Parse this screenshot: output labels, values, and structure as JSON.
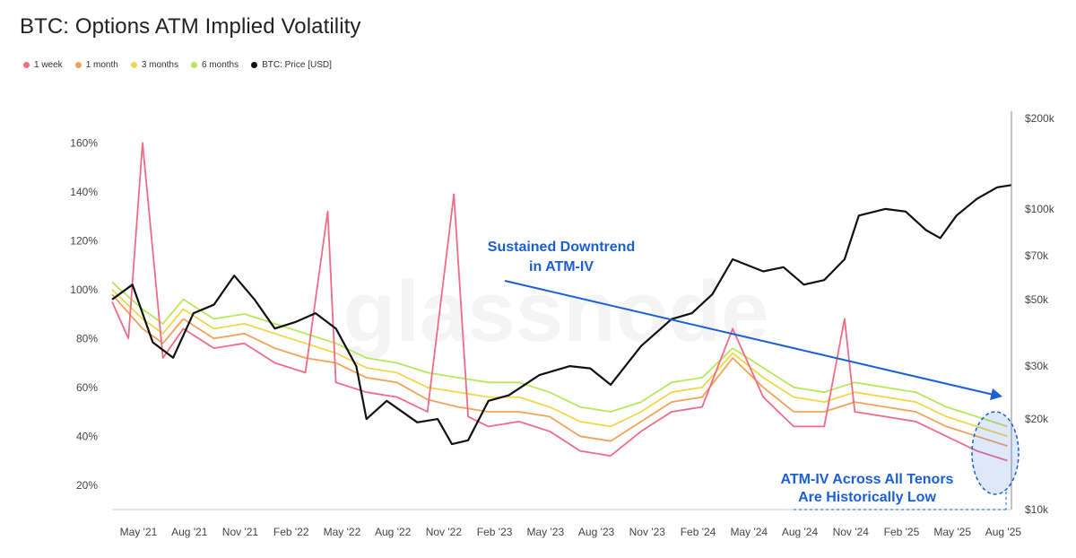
{
  "title": "BTC: Options ATM Implied Volatility",
  "watermark": "glassnode",
  "chart_data": {
    "type": "line",
    "title": "BTC: Options ATM Implied Volatility",
    "x_ticks": [
      "May '21",
      "Aug '21",
      "Nov '21",
      "Feb '22",
      "May '22",
      "Aug '22",
      "Nov '22",
      "Feb '23",
      "May '23",
      "Aug '23",
      "Nov '23",
      "Feb '24",
      "May '24",
      "Aug '24",
      "Nov '24",
      "Feb '25",
      "May '25",
      "Aug '25"
    ],
    "x_range": [
      2021.2,
      2025.62
    ],
    "y_left": {
      "ticks": [
        "160%",
        "140%",
        "120%",
        "100%",
        "80%",
        "60%",
        "40%",
        "20%"
      ],
      "tick_values": [
        160,
        140,
        120,
        100,
        80,
        60,
        40,
        20
      ],
      "range": [
        10,
        170
      ]
    },
    "y_right": {
      "ticks": [
        "$200k",
        "$100k",
        "$70k",
        "$50k",
        "$30k",
        "$20k",
        "$10k"
      ],
      "tick_values": [
        200000,
        100000,
        70000,
        50000,
        30000,
        20000,
        10000
      ],
      "log": true
    },
    "legend": [
      {
        "name": "1 week",
        "color": "#ef6b86"
      },
      {
        "name": "1 month",
        "color": "#f4a259"
      },
      {
        "name": "3 months",
        "color": "#f2d64b"
      },
      {
        "name": "6 months",
        "color": "#b9e75c"
      },
      {
        "name": "BTC: Price [USD]",
        "color": "#111111"
      }
    ],
    "series": [
      {
        "name": "6 months",
        "color": "#b9e75c",
        "axis": "left",
        "x": [
          2021.2,
          2021.35,
          2021.45,
          2021.55,
          2021.7,
          2021.85,
          2022.0,
          2022.15,
          2022.3,
          2022.45,
          2022.6,
          2022.75,
          2022.9,
          2023.05,
          2023.2,
          2023.35,
          2023.5,
          2023.65,
          2023.8,
          2023.95,
          2024.1,
          2024.25,
          2024.4,
          2024.55,
          2024.7,
          2024.85,
          2025.0,
          2025.15,
          2025.3,
          2025.45,
          2025.6
        ],
        "values": [
          103,
          92,
          86,
          96,
          88,
          90,
          86,
          82,
          78,
          72,
          70,
          66,
          64,
          62,
          62,
          58,
          52,
          50,
          54,
          62,
          64,
          76,
          68,
          60,
          58,
          62,
          60,
          58,
          52,
          48,
          44
        ]
      },
      {
        "name": "3 months",
        "color": "#f2d64b",
        "axis": "left",
        "x": [
          2021.2,
          2021.35,
          2021.45,
          2021.55,
          2021.7,
          2021.85,
          2022.0,
          2022.15,
          2022.3,
          2022.45,
          2022.6,
          2022.75,
          2022.9,
          2023.05,
          2023.2,
          2023.35,
          2023.5,
          2023.65,
          2023.8,
          2023.95,
          2024.1,
          2024.25,
          2024.4,
          2024.55,
          2024.7,
          2024.85,
          2025.0,
          2025.15,
          2025.3,
          2025.45,
          2025.6
        ],
        "values": [
          100,
          88,
          82,
          92,
          84,
          86,
          82,
          78,
          74,
          68,
          66,
          60,
          58,
          56,
          56,
          52,
          46,
          44,
          50,
          58,
          60,
          74,
          64,
          56,
          54,
          58,
          56,
          54,
          48,
          44,
          40
        ]
      },
      {
        "name": "1 month",
        "color": "#f4a259",
        "axis": "left",
        "x": [
          2021.2,
          2021.35,
          2021.45,
          2021.55,
          2021.7,
          2021.85,
          2022.0,
          2022.15,
          2022.3,
          2022.45,
          2022.6,
          2022.75,
          2022.9,
          2023.05,
          2023.2,
          2023.35,
          2023.5,
          2023.65,
          2023.8,
          2023.95,
          2024.1,
          2024.25,
          2024.4,
          2024.55,
          2024.7,
          2024.85,
          2025.0,
          2025.15,
          2025.3,
          2025.45,
          2025.6
        ],
        "values": [
          98,
          84,
          78,
          88,
          80,
          82,
          76,
          72,
          70,
          64,
          62,
          55,
          52,
          50,
          50,
          48,
          40,
          38,
          46,
          54,
          56,
          72,
          60,
          50,
          50,
          54,
          52,
          50,
          44,
          40,
          36
        ]
      },
      {
        "name": "1 week",
        "color": "#ef6b86",
        "axis": "left",
        "x": [
          2021.2,
          2021.28,
          2021.35,
          2021.45,
          2021.55,
          2021.7,
          2021.85,
          2022.0,
          2022.15,
          2022.26,
          2022.3,
          2022.45,
          2022.6,
          2022.75,
          2022.88,
          2022.95,
          2023.05,
          2023.2,
          2023.35,
          2023.5,
          2023.65,
          2023.8,
          2023.95,
          2024.1,
          2024.25,
          2024.4,
          2024.55,
          2024.7,
          2024.8,
          2024.85,
          2025.0,
          2025.15,
          2025.3,
          2025.45,
          2025.6
        ],
        "values": [
          95,
          80,
          160,
          72,
          84,
          76,
          78,
          70,
          66,
          132,
          62,
          58,
          56,
          50,
          139,
          48,
          44,
          46,
          42,
          34,
          32,
          42,
          50,
          52,
          84,
          56,
          44,
          44,
          88,
          50,
          48,
          46,
          40,
          34,
          30
        ]
      },
      {
        "name": "BTC: Price [USD]",
        "color": "#111111",
        "axis": "right",
        "x": [
          2021.2,
          2021.3,
          2021.4,
          2021.5,
          2021.6,
          2021.7,
          2021.8,
          2021.9,
          2022.0,
          2022.1,
          2022.2,
          2022.3,
          2022.4,
          2022.45,
          2022.55,
          2022.7,
          2022.8,
          2022.87,
          2022.95,
          2023.05,
          2023.15,
          2023.3,
          2023.45,
          2023.55,
          2023.65,
          2023.8,
          2023.95,
          2024.05,
          2024.15,
          2024.25,
          2024.4,
          2024.5,
          2024.6,
          2024.7,
          2024.8,
          2024.87,
          2025.0,
          2025.1,
          2025.2,
          2025.27,
          2025.35,
          2025.45,
          2025.55,
          2025.62
        ],
        "values": [
          50000,
          56000,
          36000,
          32000,
          45000,
          48000,
          60000,
          50000,
          40000,
          42000,
          45000,
          40000,
          30000,
          20000,
          23000,
          19500,
          20000,
          16500,
          17000,
          23000,
          24000,
          28000,
          30000,
          29500,
          26000,
          35000,
          43000,
          45000,
          52000,
          68000,
          62000,
          64000,
          56000,
          58000,
          68000,
          95000,
          100000,
          98000,
          85000,
          80000,
          95000,
          108000,
          118000,
          120000
        ]
      }
    ],
    "annotations": [
      "Sustained Downtrend",
      "in ATM-IV",
      "ATM-IV Across All Tenors",
      "Are Historically Low"
    ]
  }
}
